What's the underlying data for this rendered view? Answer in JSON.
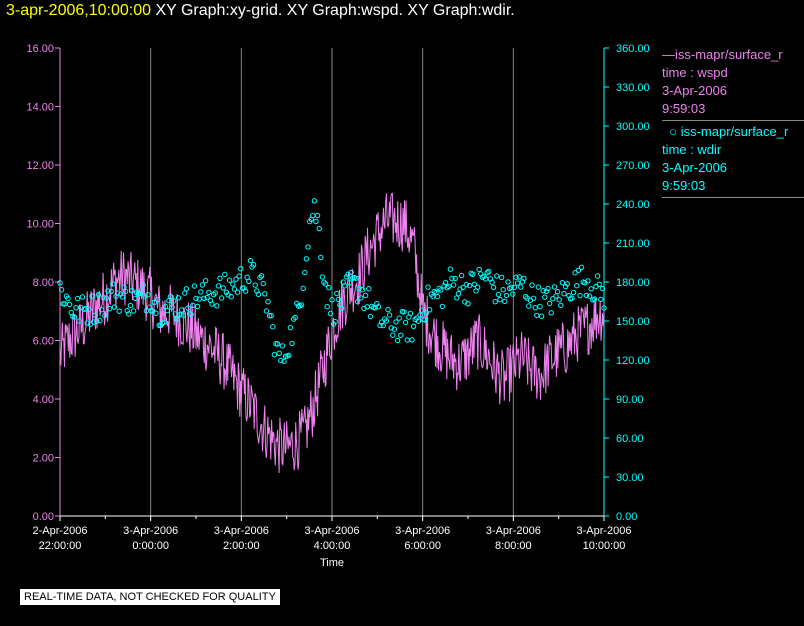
{
  "header": {
    "timestamp": "3-apr-2006,10:00:00",
    "titles": "XY Graph:xy-grid.  XY Graph:wspd.  XY Graph:wdir."
  },
  "legend": {
    "wspd": {
      "name": "iss-mapr/surface_r",
      "line2": "time : wspd",
      "line3": "3-Apr-2006",
      "line4": "9:59:03"
    },
    "wdir": {
      "name": "iss-mapr/surface_r",
      "line2": "time : wdir",
      "line3": "3-Apr-2006",
      "line4": "9:59:03"
    }
  },
  "disclaimer": "REAL-TIME DATA, NOT CHECKED FOR QUALITY",
  "colors": {
    "wspd": "#ee82ee",
    "wdir": "#00ffff",
    "grid": "#888888",
    "axis": "#ffffff"
  },
  "chart_data": {
    "type": "line",
    "xlabel": "Time",
    "x_range_hours": [
      -2.0,
      10.0
    ],
    "x_ticks": [
      {
        "h": -2,
        "date": "2-Apr-2006",
        "time": "22:00:00"
      },
      {
        "h": 0,
        "date": "3-Apr-2006",
        "time": "0:00:00"
      },
      {
        "h": 2,
        "date": "3-Apr-2006",
        "time": "2:00:00"
      },
      {
        "h": 4,
        "date": "3-Apr-2006",
        "time": "4:00:00"
      },
      {
        "h": 6,
        "date": "3-Apr-2006",
        "time": "6:00:00"
      },
      {
        "h": 8,
        "date": "3-Apr-2006",
        "time": "8:00:00"
      },
      {
        "h": 10,
        "date": "3-Apr-2006",
        "time": "10:00:00"
      }
    ],
    "y_left": {
      "series": "wspd",
      "ylim": [
        0,
        16
      ],
      "ticks": [
        "0.00",
        "2.00",
        "4.00",
        "6.00",
        "8.00",
        "10.00",
        "12.00",
        "14.00",
        "16.00"
      ]
    },
    "y_right": {
      "series": "wdir",
      "ylim": [
        0,
        360
      ],
      "ticks": [
        "0.00",
        "30.00",
        "60.00",
        "90.00",
        "120.00",
        "150.00",
        "180.00",
        "210.00",
        "240.00",
        "270.00",
        "300.00",
        "330.00",
        "360.00"
      ]
    },
    "series": [
      {
        "name": "iss-mapr/surface_r time : wspd",
        "axis": "left",
        "style": "line",
        "keypoints": [
          [
            -2.0,
            5.5
          ],
          [
            -1.8,
            6.0
          ],
          [
            -1.5,
            6.5
          ],
          [
            -1.2,
            7.2
          ],
          [
            -1.0,
            7.5
          ],
          [
            -0.8,
            8.0
          ],
          [
            -0.6,
            8.2
          ],
          [
            -0.4,
            8.0
          ],
          [
            -0.2,
            7.8
          ],
          [
            0.0,
            7.5
          ],
          [
            0.2,
            7.0
          ],
          [
            0.4,
            7.0
          ],
          [
            0.6,
            6.8
          ],
          [
            0.8,
            6.5
          ],
          [
            1.0,
            6.2
          ],
          [
            1.3,
            5.8
          ],
          [
            1.6,
            5.3
          ],
          [
            1.9,
            4.5
          ],
          [
            2.2,
            3.8
          ],
          [
            2.5,
            3.0
          ],
          [
            2.8,
            2.4
          ],
          [
            3.0,
            2.3
          ],
          [
            3.2,
            2.5
          ],
          [
            3.4,
            2.8
          ],
          [
            3.6,
            3.8
          ],
          [
            3.8,
            5.0
          ],
          [
            4.0,
            6.3
          ],
          [
            4.2,
            7.2
          ],
          [
            4.4,
            7.8
          ],
          [
            4.6,
            8.2
          ],
          [
            4.8,
            9.0
          ],
          [
            5.0,
            9.6
          ],
          [
            5.2,
            10.1
          ],
          [
            5.4,
            10.1
          ],
          [
            5.6,
            10.0
          ],
          [
            5.8,
            9.2
          ],
          [
            6.0,
            7.0
          ],
          [
            6.2,
            6.3
          ],
          [
            6.4,
            5.8
          ],
          [
            6.6,
            5.4
          ],
          [
            6.8,
            5.2
          ],
          [
            7.0,
            5.5
          ],
          [
            7.2,
            6.0
          ],
          [
            7.4,
            5.6
          ],
          [
            7.6,
            5.0
          ],
          [
            7.8,
            4.6
          ],
          [
            8.0,
            5.1
          ],
          [
            8.2,
            5.4
          ],
          [
            8.4,
            5.0
          ],
          [
            8.6,
            4.8
          ],
          [
            8.8,
            5.3
          ],
          [
            9.0,
            5.6
          ],
          [
            9.2,
            5.8
          ],
          [
            9.4,
            6.2
          ],
          [
            9.6,
            6.4
          ],
          [
            9.8,
            6.8
          ],
          [
            10.0,
            7.0
          ]
        ],
        "jitter": 1.0
      },
      {
        "name": "iss-mapr/surface_r time : wdir",
        "axis": "right",
        "style": "circles",
        "keypoints": [
          [
            -2.0,
            175
          ],
          [
            -1.7,
            158
          ],
          [
            -1.4,
            158
          ],
          [
            -1.2,
            160
          ],
          [
            -1.0,
            165
          ],
          [
            -0.8,
            170
          ],
          [
            -0.6,
            168
          ],
          [
            -0.4,
            165
          ],
          [
            -0.2,
            168
          ],
          [
            0.0,
            170
          ],
          [
            0.2,
            158
          ],
          [
            0.4,
            160
          ],
          [
            0.6,
            162
          ],
          [
            0.8,
            165
          ],
          [
            1.0,
            168
          ],
          [
            1.2,
            170
          ],
          [
            1.4,
            172
          ],
          [
            1.6,
            174
          ],
          [
            1.8,
            176
          ],
          [
            2.0,
            182
          ],
          [
            2.2,
            186
          ],
          [
            2.4,
            178
          ],
          [
            2.6,
            160
          ],
          [
            2.7,
            140
          ],
          [
            2.8,
            125
          ],
          [
            2.9,
            120
          ],
          [
            3.0,
            130
          ],
          [
            3.2,
            150
          ],
          [
            3.3,
            165
          ],
          [
            3.4,
            195
          ],
          [
            3.5,
            225
          ],
          [
            3.6,
            238
          ],
          [
            3.7,
            225
          ],
          [
            3.8,
            190
          ],
          [
            3.9,
            170
          ],
          [
            4.0,
            158
          ],
          [
            4.2,
            165
          ],
          [
            4.4,
            178
          ],
          [
            4.6,
            175
          ],
          [
            4.8,
            165
          ],
          [
            5.0,
            152
          ],
          [
            5.2,
            148
          ],
          [
            5.4,
            146
          ],
          [
            5.6,
            146
          ],
          [
            5.8,
            145
          ],
          [
            6.0,
            160
          ],
          [
            6.2,
            168
          ],
          [
            6.4,
            170
          ],
          [
            6.6,
            180
          ],
          [
            6.8,
            178
          ],
          [
            7.0,
            175
          ],
          [
            7.2,
            180
          ],
          [
            7.4,
            185
          ],
          [
            7.6,
            175
          ],
          [
            7.8,
            172
          ],
          [
            8.0,
            175
          ],
          [
            8.2,
            178
          ],
          [
            8.4,
            168
          ],
          [
            8.6,
            165
          ],
          [
            8.8,
            165
          ],
          [
            9.0,
            168
          ],
          [
            9.2,
            175
          ],
          [
            9.4,
            180
          ],
          [
            9.6,
            182
          ],
          [
            9.8,
            175
          ],
          [
            10.0,
            170
          ]
        ],
        "jitter": 12
      }
    ]
  }
}
